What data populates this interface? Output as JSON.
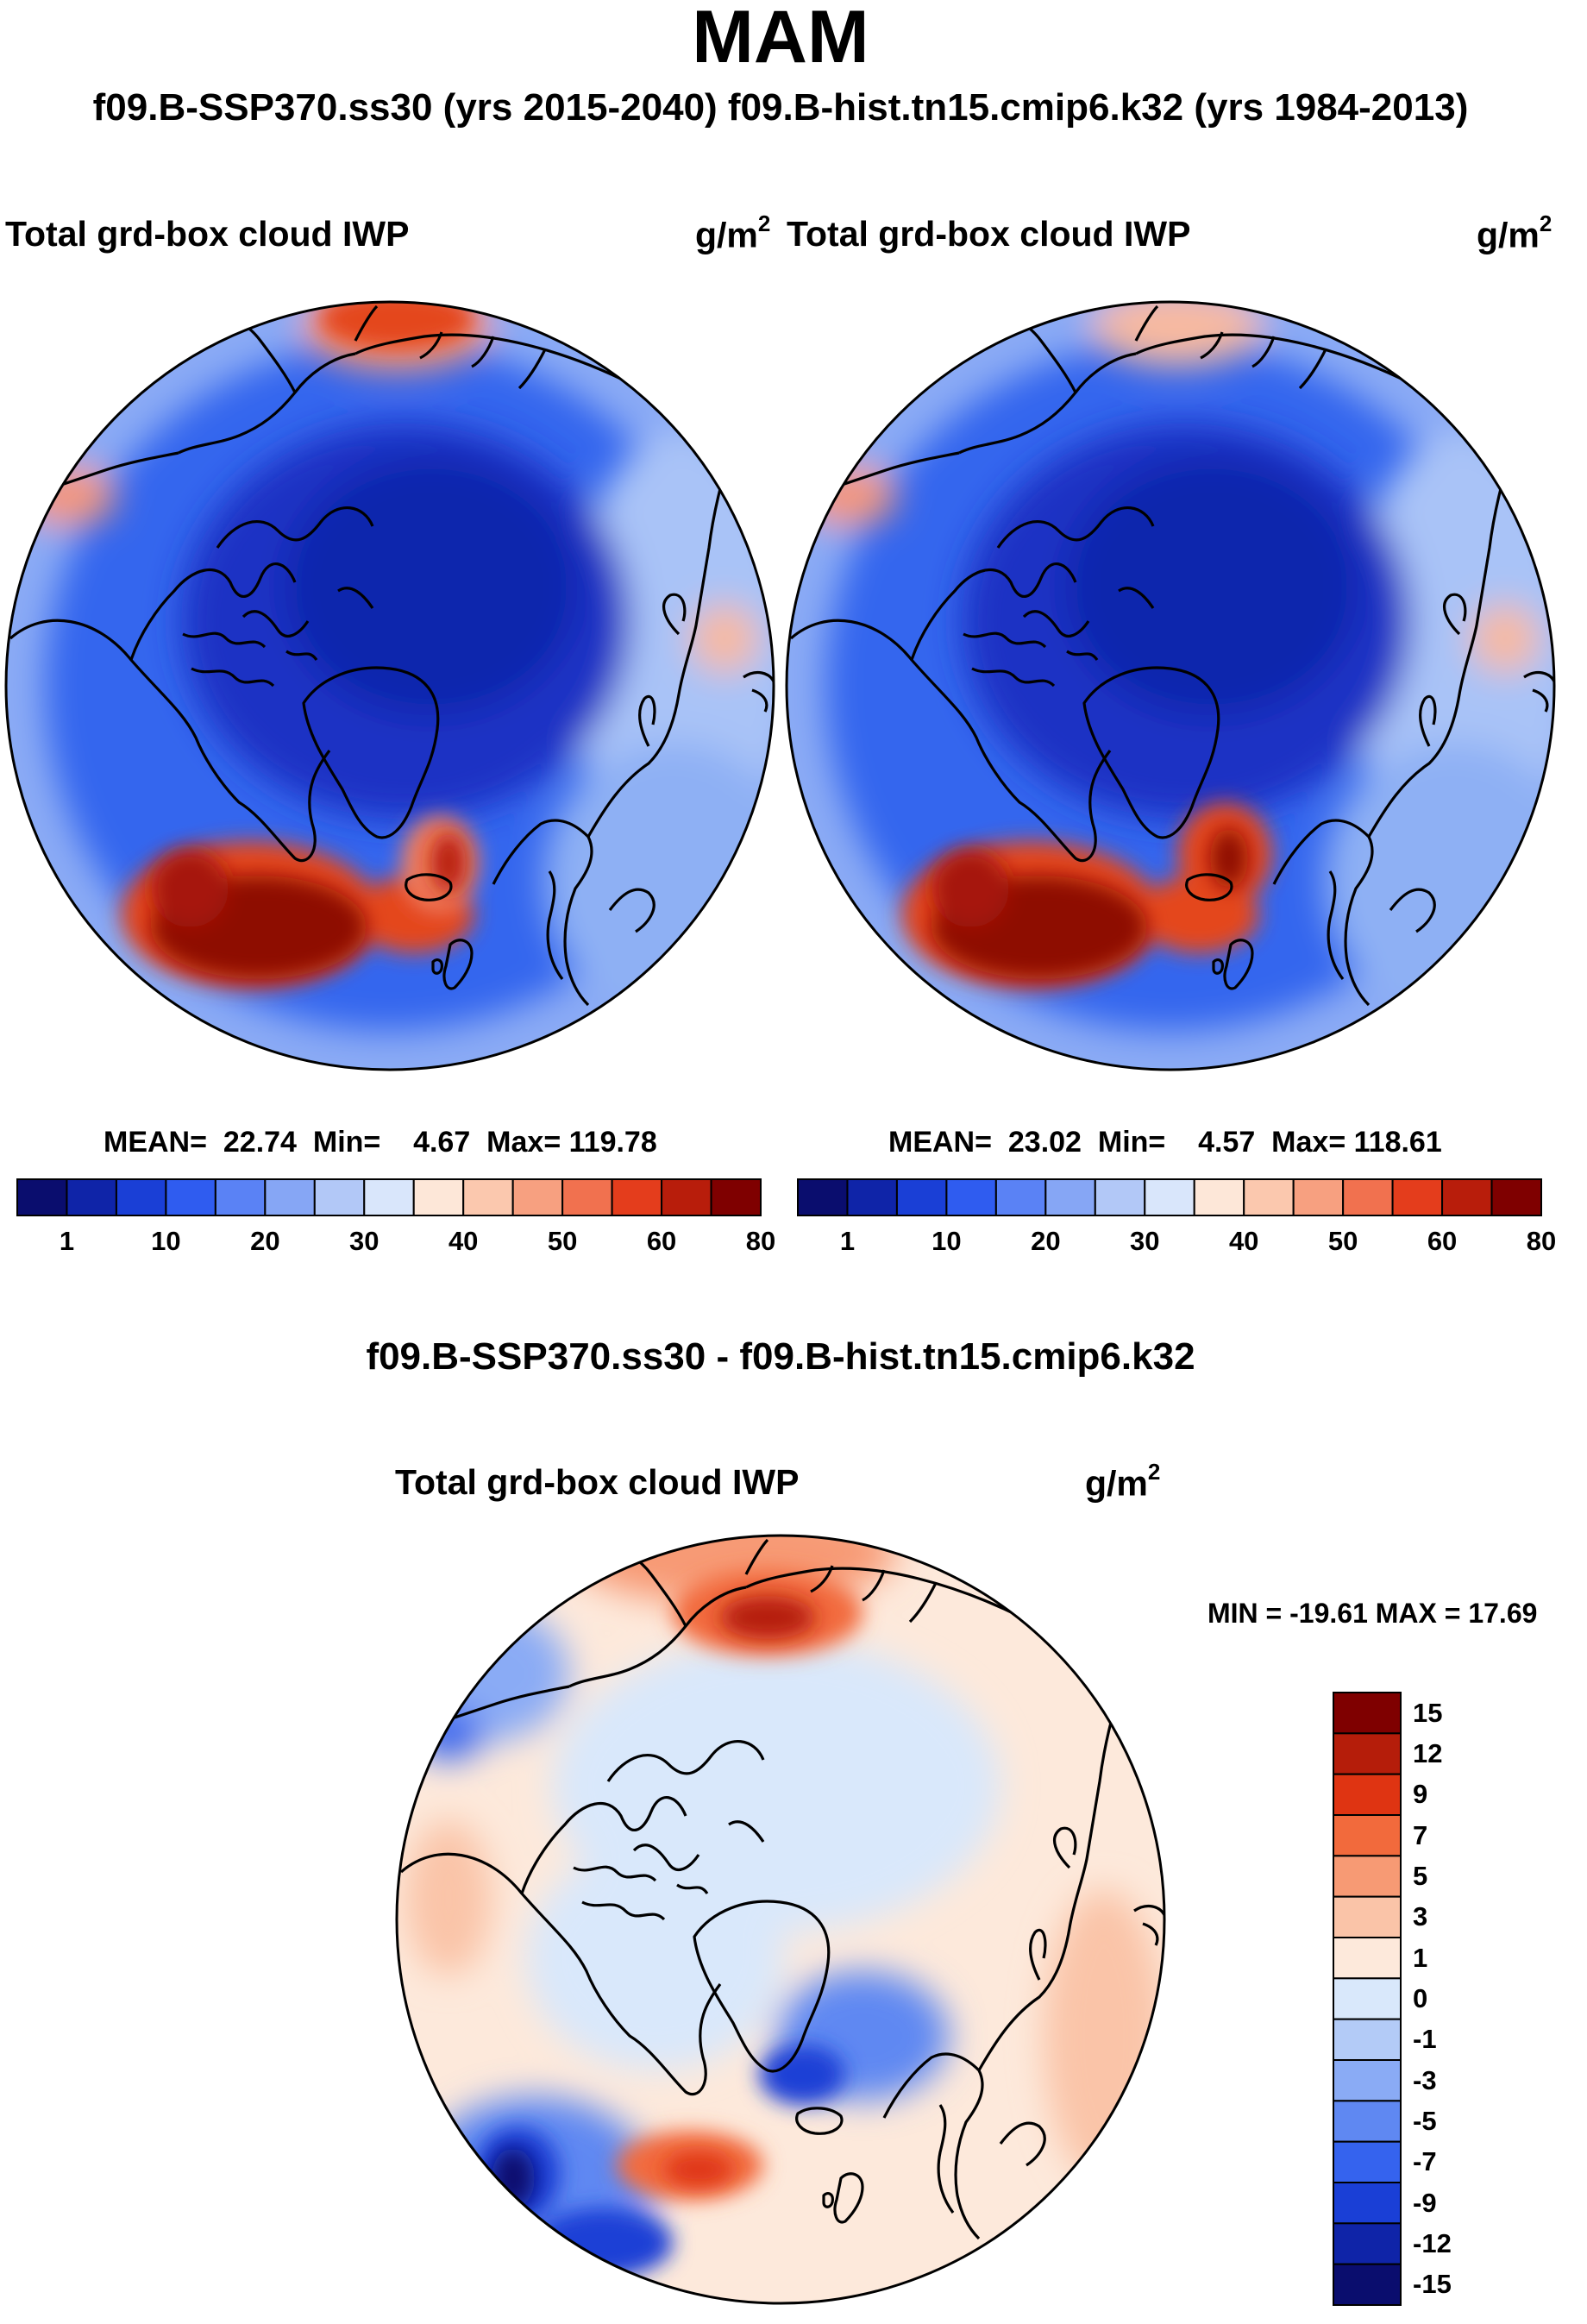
{
  "header": {
    "title": "MAM",
    "subtitle": "f09.B-SSP370.ss30 (yrs 2015-2040)  f09.B-hist.tn15.cmip6.k32 (yrs 1984-2013)"
  },
  "panels": [
    {
      "variable": "Total grd-box cloud IWP",
      "units_base": "g/m",
      "units_exp": "2",
      "mean_label": "MEAN=",
      "mean_value": "22.74",
      "min_label": "Min=",
      "min_value": "4.67",
      "max_label": "Max=",
      "max_value": "119.78"
    },
    {
      "variable": "Total grd-box cloud IWP",
      "units_base": "g/m",
      "units_exp": "2",
      "mean_label": "MEAN=",
      "mean_value": "23.02",
      "min_label": "Min=",
      "min_value": "4.57",
      "max_label": "Max=",
      "max_value": "118.61"
    }
  ],
  "colorbar_top": {
    "labels": [
      "1",
      "10",
      "20",
      "30",
      "40",
      "50",
      "60",
      "80"
    ],
    "colors": [
      "#0a0d6e",
      "#0f24a8",
      "#1a3fd6",
      "#2f5cf0",
      "#5a82f5",
      "#86a6f5",
      "#b2c8f7",
      "#d9e6fb",
      "#fde7d8",
      "#fbc8ae",
      "#f7a080",
      "#f1714f",
      "#e43d1c",
      "#b81d0b",
      "#7f0000"
    ]
  },
  "difference": {
    "title": "f09.B-SSP370.ss30 - f09.B-hist.tn15.cmip6.k32",
    "variable": "Total grd-box cloud IWP",
    "units_base": "g/m",
    "units_exp": "2",
    "minmax": "MIN = -19.61 MAX =  17.69",
    "colorbar_labels": [
      "15",
      "12",
      "9",
      "7",
      "5",
      "3",
      "1",
      "0",
      "-1",
      "-3",
      "-5",
      "-7",
      "-9",
      "-12",
      "-15"
    ],
    "colorbar_colors": [
      "#7f0000",
      "#b51d0a",
      "#df3412",
      "#f26a3c",
      "#f79a74",
      "#fac4a8",
      "#fde9db",
      "#d9e8fb",
      "#b3cbf7",
      "#8aabf5",
      "#5f88f2",
      "#3563ee",
      "#1a3fd6",
      "#0f24a8",
      "#0a0d6e"
    ]
  }
}
